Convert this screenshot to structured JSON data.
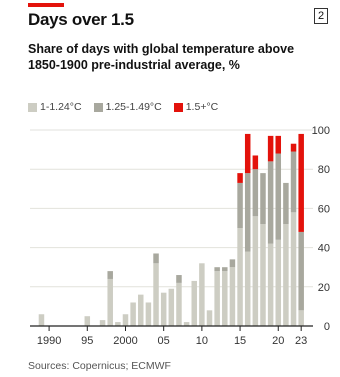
{
  "header": {
    "title": "Days over 1.5",
    "index_label": "2",
    "subtitle": "Share of days with global temperature above 1850-1900 pre-industrial average, %"
  },
  "legend": [
    {
      "label": "1-1.24°C",
      "color": "#cdcdc3"
    },
    {
      "label": "1.25-1.49°C",
      "color": "#a8a89e"
    },
    {
      "label": "1.5+°C",
      "color": "#e3120b"
    }
  ],
  "source": "Sources: Copernicus; ECMWF",
  "chart_data": {
    "type": "bar",
    "stacked": true,
    "x": [
      1988,
      1989,
      1990,
      1991,
      1992,
      1993,
      1994,
      1995,
      1996,
      1997,
      1998,
      1999,
      2000,
      2001,
      2002,
      2003,
      2004,
      2005,
      2006,
      2007,
      2008,
      2009,
      2010,
      2011,
      2012,
      2013,
      2014,
      2015,
      2016,
      2017,
      2018,
      2019,
      2020,
      2021,
      2022,
      2023
    ],
    "xtick_labels": [
      "1990",
      "95",
      "2000",
      "05",
      "10",
      "15",
      "20",
      "23"
    ],
    "xtick_years": [
      1990,
      1995,
      2000,
      2005,
      2010,
      2015,
      2020,
      2023
    ],
    "ylim": [
      0,
      100
    ],
    "yticks": [
      0,
      20,
      40,
      60,
      80,
      100
    ],
    "ylabel": "",
    "xlabel": "",
    "series": [
      {
        "name": "1-1.24°C",
        "values": [
          0,
          6,
          0,
          0,
          0,
          0,
          0,
          5,
          0,
          3,
          24,
          2,
          6,
          12,
          16,
          12,
          32,
          17,
          19,
          22,
          2,
          23,
          32,
          8,
          28,
          28,
          30,
          50,
          38,
          56,
          52,
          42,
          44,
          52,
          58,
          8
        ]
      },
      {
        "name": "1.25-1.49°C",
        "values": [
          0,
          0,
          0,
          0,
          0,
          0,
          0,
          0,
          0,
          0,
          4,
          0,
          0,
          0,
          0,
          0,
          5,
          0,
          0,
          4,
          0,
          0,
          0,
          0,
          2,
          2,
          4,
          23,
          40,
          24,
          26,
          42,
          44,
          21,
          31,
          40
        ]
      },
      {
        "name": "1.5+°C",
        "values": [
          0,
          0,
          0,
          0,
          0,
          0,
          0,
          0,
          0,
          0,
          0,
          0,
          0,
          0,
          0,
          0,
          0,
          0,
          0,
          0,
          0,
          0,
          0,
          0,
          0,
          0,
          0,
          5,
          20,
          7,
          0,
          13,
          9,
          0,
          4,
          50
        ]
      }
    ]
  }
}
